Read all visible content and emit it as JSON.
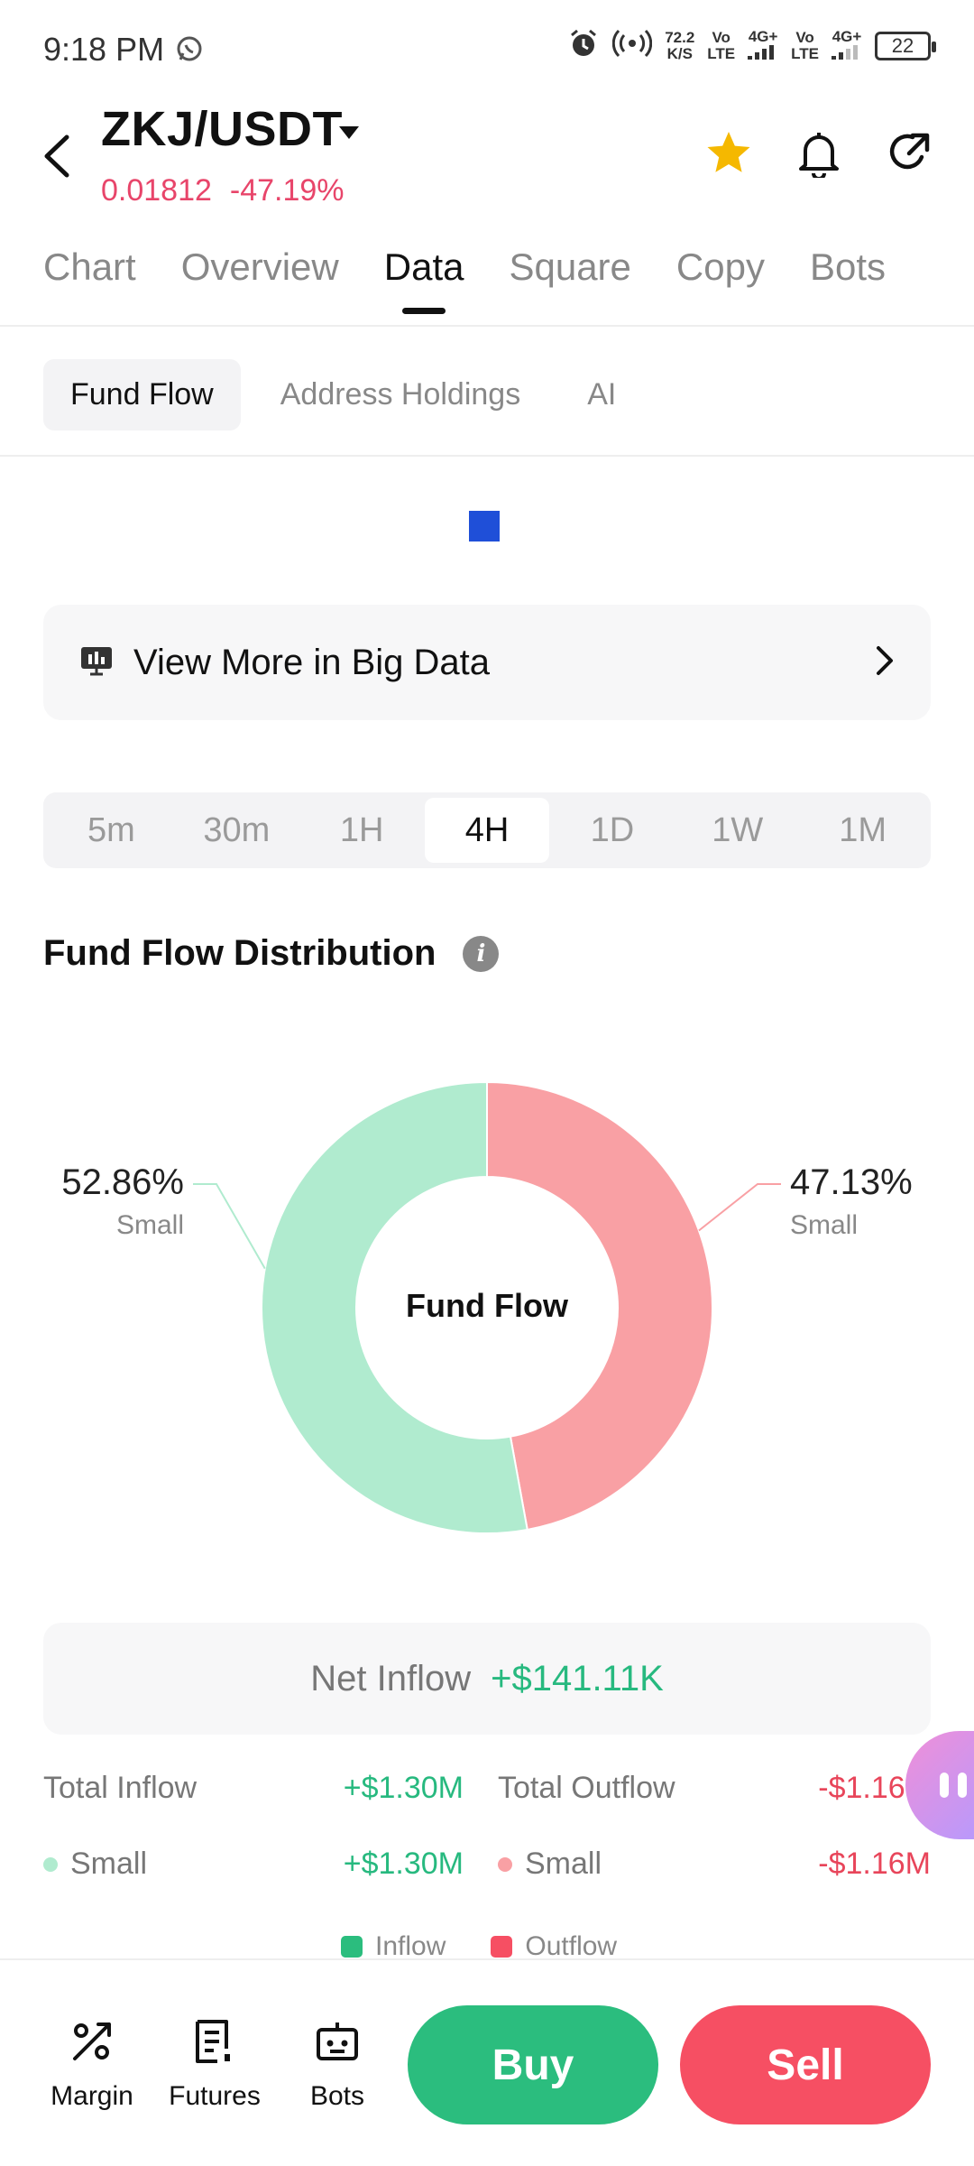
{
  "status_bar": {
    "time": "9:18 PM",
    "speed_value": "72.2",
    "speed_unit": "K/S",
    "sim1_top": "Vo",
    "sim1_bottom": "LTE",
    "sim1_net": "4G+",
    "sim2_top": "Vo",
    "sim2_bottom": "LTE",
    "sim2_net": "4G+",
    "battery": "22"
  },
  "header": {
    "pair": "ZKJ/USDT",
    "price": "0.01812",
    "change": "-47.19%"
  },
  "main_tabs": [
    {
      "label": "Chart"
    },
    {
      "label": "Overview"
    },
    {
      "label": "Data"
    },
    {
      "label": "Square"
    },
    {
      "label": "Copy"
    },
    {
      "label": "Bots"
    }
  ],
  "main_tab_active": "Data",
  "sub_tabs": [
    {
      "label": "Fund Flow"
    },
    {
      "label": "Address Holdings"
    },
    {
      "label": "AI"
    }
  ],
  "big_data": {
    "label": "View More in Big Data"
  },
  "time_tabs": [
    {
      "label": "5m"
    },
    {
      "label": "30m"
    },
    {
      "label": "1H"
    },
    {
      "label": "4H"
    },
    {
      "label": "1D"
    },
    {
      "label": "1W"
    },
    {
      "label": "1M"
    }
  ],
  "time_tab_active": "4H",
  "section": {
    "title": "Fund Flow Distribution",
    "info_glyph": "i"
  },
  "chart_data": {
    "type": "pie",
    "title": "",
    "center_label": "Fund Flow",
    "slices": [
      {
        "label": "Small",
        "category": "Outflow",
        "value": 47.13,
        "display": "47.13%",
        "color": "#f9a0a4"
      },
      {
        "label": "Small",
        "category": "Inflow",
        "value": 52.86,
        "display": "52.86%",
        "color": "#b0ebcf"
      }
    ],
    "legend": [
      {
        "name": "Inflow",
        "color": "#2bbd7e"
      },
      {
        "name": "Outflow",
        "color": "#f64f63"
      }
    ],
    "legend_position": "bottom"
  },
  "net_inflow": {
    "label": "Net Inflow",
    "value": "+$141.11K"
  },
  "totals": {
    "total_inflow_label": "Total Inflow",
    "total_inflow_value": "+$1.30M",
    "total_outflow_label": "Total Outflow",
    "total_outflow_value": "-$1.16M",
    "small_in_label": "Small",
    "small_in_value": "+$1.30M",
    "small_out_label": "Small",
    "small_out_value": "-$1.16M"
  },
  "bottom_nav": {
    "margin": "Margin",
    "futures": "Futures",
    "bots": "Bots",
    "buy": "Buy",
    "sell": "Sell"
  },
  "colors": {
    "accent_green": "#2bbd7e",
    "accent_red": "#f64f63",
    "price_red": "#e8456a",
    "star": "#f5b800"
  }
}
